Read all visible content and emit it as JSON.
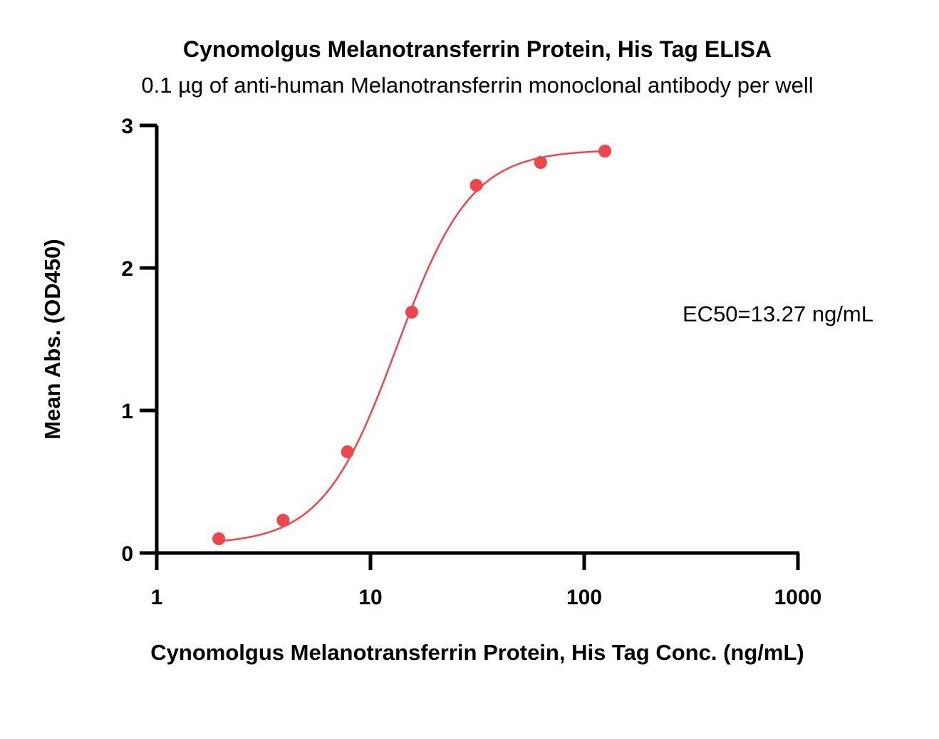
{
  "chart_data": {
    "type": "scatter",
    "title": "Cynomolgus Melanotransferrin Protein, His Tag ELISA",
    "subtitle": "0.1 µg of anti-human Melanotransferrin monoclonal antibody per well",
    "xlabel": "Cynomolgus Melanotransferrin Protein, His Tag Conc. (ng/mL)",
    "ylabel": "Mean Abs. (OD450)",
    "x_scale": "log",
    "xlim": [
      1,
      1000
    ],
    "ylim": [
      0,
      3
    ],
    "x_ticks": [
      "1",
      "10",
      "100",
      "1000"
    ],
    "y_ticks": [
      "0",
      "1",
      "2",
      "3"
    ],
    "grid": false,
    "series": [
      {
        "color": "#f0454b",
        "x": [
          1.95,
          3.9,
          7.8,
          15.6,
          31.25,
          62.5,
          125
        ],
        "y": [
          0.1,
          0.23,
          0.71,
          1.69,
          2.58,
          2.74,
          2.82
        ]
      }
    ],
    "fit": {
      "model": "4PL",
      "bottom": 0.06,
      "top": 2.83,
      "ec50": 13.27,
      "hill": 2.5
    },
    "annotation": "EC50=13.27 ng/mL"
  }
}
